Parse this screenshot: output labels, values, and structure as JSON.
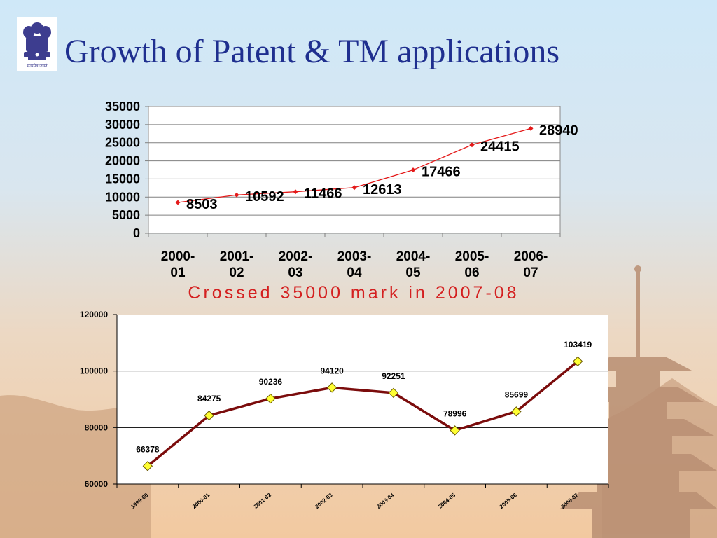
{
  "slide": {
    "title": "Growth of Patent & TM applications",
    "note": "Crossed 35000 mark in 2007-08",
    "emblem_caption": "सत्यमेव जयते"
  },
  "colors": {
    "title": "#1f2f8f",
    "note": "#d42020",
    "chart1_line": "#e41a1a",
    "chart2_line": "#7b0c0c",
    "chart2_marker": "#ffff33"
  },
  "chart_data": [
    {
      "type": "line",
      "categories": [
        "2000-01",
        "2001-02",
        "2002-03",
        "2003-04",
        "2004-05",
        "2005-06",
        "2006-07"
      ],
      "category_lines": [
        [
          "2000-",
          "01"
        ],
        [
          "2001-",
          "02"
        ],
        [
          "2002-",
          "03"
        ],
        [
          "2003-",
          "04"
        ],
        [
          "2004-",
          "05"
        ],
        [
          "2005-",
          "06"
        ],
        [
          "2006-",
          "07"
        ]
      ],
      "values": [
        8503,
        10592,
        11466,
        12613,
        17466,
        24415,
        28940
      ],
      "data_labels": [
        "8503",
        "10592",
        "11466",
        "12613",
        "17466",
        "24415",
        "28940"
      ],
      "yticks": [
        0,
        5000,
        10000,
        15000,
        20000,
        25000,
        30000,
        35000
      ],
      "ytick_labels": [
        "0",
        "5000",
        "10000",
        "15000",
        "20000",
        "25000",
        "30000",
        "35000"
      ],
      "ylim": [
        0,
        35000
      ],
      "grid": true,
      "title": "",
      "xlabel": "",
      "ylabel": ""
    },
    {
      "type": "line",
      "categories": [
        "1999-00",
        "2000-01",
        "2001-02",
        "2002-03",
        "2003-04",
        "2004-05",
        "2005-06",
        "2006-07"
      ],
      "values": [
        66378,
        84275,
        90236,
        94120,
        92251,
        78996,
        85699,
        103419
      ],
      "data_labels": [
        "66378",
        "84275",
        "90236",
        "94120",
        "92251",
        "78996",
        "85699",
        "103419"
      ],
      "yticks": [
        60000,
        80000,
        100000,
        120000
      ],
      "ytick_labels": [
        "60000",
        "80000",
        "100000",
        "120000"
      ],
      "ylim": [
        60000,
        120000
      ],
      "grid": true,
      "marker": "diamond",
      "title": "",
      "xlabel": "",
      "ylabel": ""
    }
  ]
}
